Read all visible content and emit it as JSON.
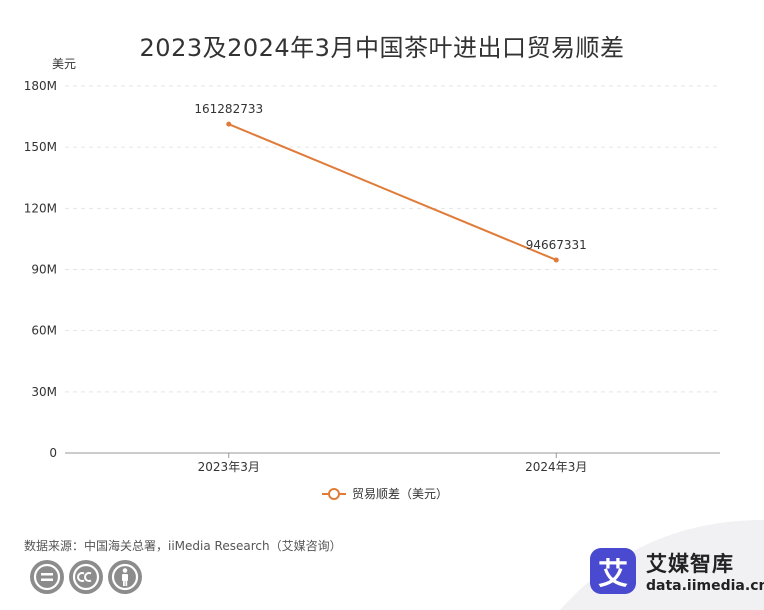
{
  "chart_data": {
    "type": "line",
    "title": "2023及2024年3月中国茶叶进出口贸易顺差",
    "ylabel": "美元",
    "ylim": [
      0,
      180000000
    ],
    "yticks": [
      {
        "value": 0,
        "label": "0"
      },
      {
        "value": 30000000,
        "label": "30M"
      },
      {
        "value": 60000000,
        "label": "60M"
      },
      {
        "value": 90000000,
        "label": "90M"
      },
      {
        "value": 120000000,
        "label": "120M"
      },
      {
        "value": 150000000,
        "label": "150M"
      },
      {
        "value": 180000000,
        "label": "180M"
      }
    ],
    "categories": [
      "2023年3月",
      "2024年3月"
    ],
    "series": [
      {
        "name": "贸易顺差（美元）",
        "values": [
          161282733,
          94667331
        ],
        "labels": [
          "161282733",
          "94667331"
        ]
      }
    ],
    "grid": true,
    "legend": "bottom",
    "colors": {
      "line": "#e07b39",
      "grid": "#e5e5e5",
      "axis": "#999999"
    }
  },
  "footer": {
    "source": "数据来源：中国海关总署，iiMedia Research（艾媒咨询）"
  },
  "brand": {
    "logo_char": "艾",
    "name": "艾媒智库",
    "url": "data.iimedia.cn"
  },
  "license_icons": [
    "cc-equal-icon",
    "cc-cc-icon",
    "cc-person-icon"
  ]
}
